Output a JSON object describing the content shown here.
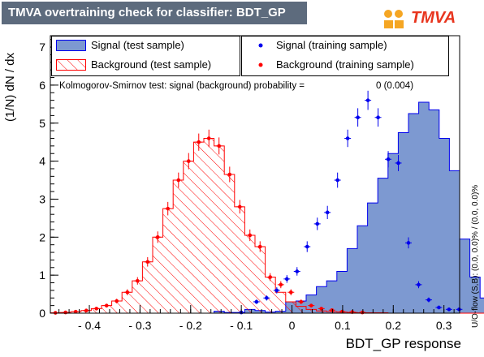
{
  "title": "TMVA overtraining check for classifier: BDT_GP",
  "logo_text": "TMVA",
  "legend": {
    "signal_test": "Signal (test sample)",
    "background_test": "Background (test sample)",
    "signal_train": "Signal (training sample)",
    "background_train": "Background (training sample)"
  },
  "ks_text": "Kolmogorov-Smirnov test: signal (background) probability =",
  "ks_value": "0 (0.004)",
  "side_label": "U/O-flow (S,B): (0.0, 0.0)% / (0.0, 0.0)%",
  "colors": {
    "signal_fill": "#7d99d1",
    "signal_line": "#0000ee",
    "background": "#ff0000",
    "title_bar": "#5d6b7d"
  },
  "chart_data": {
    "type": "bar",
    "xlabel": "BDT_GP response",
    "ylabel": "(1/N) dN / dx",
    "xlim": [
      -0.477,
      0.331
    ],
    "ylim": [
      0,
      7.3
    ],
    "x_ticks": [
      -0.4,
      -0.3,
      -0.2,
      -0.1,
      0,
      0.1,
      0.2,
      0.3
    ],
    "x_tick_labels": [
      "- 0.4",
      "- 0.3",
      "- 0.2",
      "- 0.1",
      "0",
      "0.1",
      "0.2",
      "0.3"
    ],
    "y_ticks": [
      0,
      1,
      2,
      3,
      4,
      5,
      6,
      7
    ],
    "bin_edges_start": -0.477,
    "bin_width": 0.0202,
    "series": [
      {
        "name": "Signal (test sample)",
        "kind": "filled_histogram",
        "values": [
          0,
          0,
          0,
          0,
          0,
          0,
          0,
          0,
          0,
          0,
          0,
          0,
          0,
          0,
          0,
          0,
          0.05,
          0.02,
          0.02,
          0.1,
          0.07,
          0.03,
          0.05,
          0.3,
          0.32,
          0.48,
          0.7,
          0.85,
          1.1,
          1.7,
          2.3,
          2.9,
          3.55,
          4.2,
          4.75,
          5.25,
          5.55,
          5.35,
          4.6,
          3.75,
          1.95,
          0.95,
          0.4,
          0.18
        ]
      },
      {
        "name": "Background (test sample)",
        "kind": "hatched_histogram",
        "values": [
          0.01,
          0.02,
          0.04,
          0.07,
          0.12,
          0.2,
          0.32,
          0.55,
          0.85,
          1.35,
          2.0,
          2.75,
          3.5,
          4.0,
          4.5,
          4.6,
          4.4,
          3.65,
          2.8,
          2.05,
          1.75,
          0.95,
          0.55,
          0.3,
          0.18,
          0.1,
          0.06,
          0.04,
          0.03,
          0.02,
          0.01,
          0.01,
          0.01,
          0,
          0,
          0,
          0,
          0,
          0,
          0,
          0,
          0,
          0,
          0
        ]
      },
      {
        "name": "Signal (training sample)",
        "kind": "points",
        "x": [
          -0.1,
          -0.07,
          -0.05,
          -0.03,
          -0.01,
          0.01,
          0.03,
          0.05,
          0.07,
          0.09,
          0.11,
          0.13,
          0.15,
          0.17,
          0.19,
          0.21,
          0.23,
          0.25,
          0.27,
          0.29,
          0.31,
          0.33
        ],
        "y": [
          0.02,
          0.3,
          0.4,
          0.6,
          0.9,
          1.1,
          1.75,
          2.35,
          2.65,
          3.5,
          4.6,
          5.15,
          5.6,
          5.15,
          4.05,
          3.95,
          1.85,
          0.75,
          0.35,
          0.15,
          0.1,
          0.1
        ]
      },
      {
        "name": "Background (training sample)",
        "kind": "points",
        "x": [
          -0.467,
          -0.447,
          -0.427,
          -0.406,
          -0.386,
          -0.366,
          -0.346,
          -0.325,
          -0.305,
          -0.285,
          -0.265,
          -0.245,
          -0.224,
          -0.204,
          -0.184,
          -0.164,
          -0.144,
          -0.123,
          -0.103,
          -0.083,
          -0.063,
          -0.043,
          -0.022,
          -0.002,
          0.018,
          0.038,
          0.058,
          0.079,
          0.099,
          0.119,
          0.139
        ],
        "y": [
          0.01,
          0.02,
          0.04,
          0.07,
          0.12,
          0.2,
          0.32,
          0.55,
          0.85,
          1.35,
          2.0,
          2.75,
          3.5,
          4.0,
          4.5,
          4.6,
          4.4,
          3.65,
          2.8,
          2.05,
          1.75,
          0.95,
          0.75,
          0.55,
          0.3,
          0.2,
          0.12,
          0.08,
          0.04,
          0.03,
          0.02
        ]
      }
    ]
  }
}
